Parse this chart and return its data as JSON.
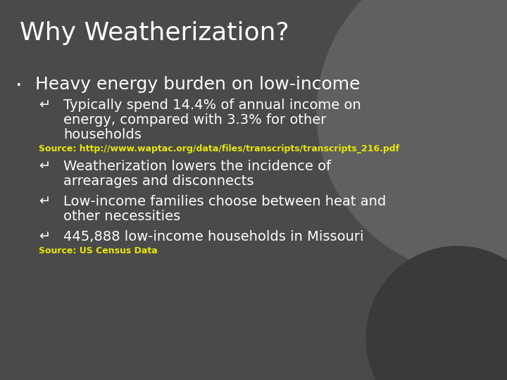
{
  "title": "Why Weatherization?",
  "bg_color": "#4a4a4a",
  "circle_large_color": "#606060",
  "circle_small_color": "#3a3a3a",
  "title_color": "#ffffff",
  "title_fontsize": 26,
  "bullet_color": "#ffffff",
  "bullet_fontsize": 18,
  "sub_bullet_color": "#ffffff",
  "sub_bullet_fontsize": 14,
  "source_color": "#e8e800",
  "source_fontsize": 9,
  "bullet_marker": "·",
  "sub_marker": "↵",
  "main_bullet": "Heavy energy burden on low-income",
  "sub1_line1": "Typically spend 14.4% of annual income on",
  "sub1_line2": "energy, compared with 3.3% for other",
  "sub1_line3": "households",
  "source1": "Source: http://www.waptac.org/data/files/transcripts/transcripts_216.pdf",
  "sub2_line1": "Weatherization lowers the incidence of",
  "sub2_line2": "arrearages and disconnects",
  "sub3_line1": "Low-income families choose between heat and",
  "sub3_line2": "other necessities",
  "sub4_line1": "445,888 low-income households in Missouri",
  "source2": "Source: US Census Data"
}
